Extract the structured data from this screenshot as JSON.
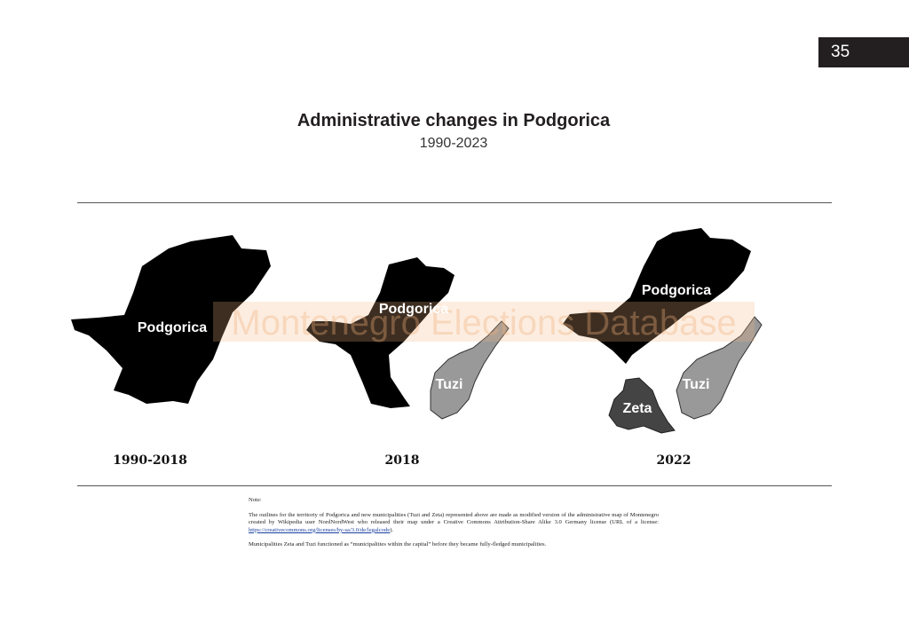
{
  "page_number": "35",
  "header": {
    "title": "Administrative changes in Podgorica",
    "subtitle": "1990-2023"
  },
  "watermark": "Montenegro Elections Database",
  "maps": [
    {
      "caption": "1990-2018",
      "regions": [
        "Podgorica"
      ]
    },
    {
      "caption": "2018",
      "regions": [
        "Podgorica",
        "Tuzi"
      ]
    },
    {
      "caption": "2022",
      "regions": [
        "Podgorica",
        "Zeta",
        "Tuzi"
      ]
    }
  ],
  "note": {
    "heading": "Note:",
    "paragraphs": [
      {
        "before": "The outlines for the territoriy of Podgorica and new municipalities (Tuzi and Zeta) represented above are made as modified version of the administrative map of Montenegro created by Wikipedia user NordNordWest who released their map under a Creative Commons Attribution-Share Alike 3.0 Germany license (URL of a license: ",
        "link": "https://creativecommons.org/licenses/by-sa/3.0/de/legalcode",
        "after": ")."
      },
      {
        "before": "Municipalities Zeta and Tuzi functioned as “municipalities within the capital” before they became fully-fledged municipalities."
      }
    ]
  }
}
